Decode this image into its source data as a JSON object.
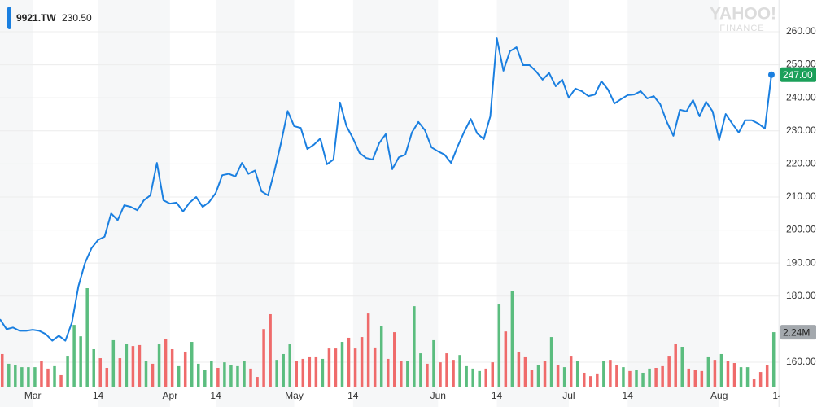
{
  "chart_data": {
    "type": "line",
    "logo": "YAHOO!",
    "logo_sub": "FINANCE",
    "legend_value": "230.50",
    "grid": true,
    "ylim": [
      152.6,
      269.6
    ],
    "yticks": [
      {
        "value": 160,
        "label": "160.00"
      },
      {
        "value": 180,
        "label": "180.00"
      },
      {
        "value": 190,
        "label": "190.00"
      },
      {
        "value": 200,
        "label": "200.00"
      },
      {
        "value": 210,
        "label": "210.00"
      },
      {
        "value": 220,
        "label": "220.00"
      },
      {
        "value": 230,
        "label": "230.00"
      },
      {
        "value": 240,
        "label": "240.00"
      },
      {
        "value": 250,
        "label": "250.00"
      },
      {
        "value": 260,
        "label": "260.00"
      }
    ],
    "y2lim": [
      0,
      15.9
    ],
    "categories": [
      null,
      null,
      null,
      null,
      null,
      "Mar",
      null,
      null,
      null,
      null,
      null,
      null,
      null,
      null,
      null,
      "14",
      null,
      null,
      null,
      null,
      null,
      null,
      null,
      null,
      null,
      null,
      "Apr",
      null,
      null,
      null,
      null,
      null,
      null,
      "14",
      null,
      null,
      null,
      null,
      null,
      null,
      null,
      null,
      null,
      null,
      null,
      "May",
      null,
      null,
      null,
      null,
      null,
      null,
      null,
      null,
      "14",
      null,
      null,
      null,
      null,
      null,
      null,
      null,
      null,
      null,
      null,
      null,
      null,
      "Jun",
      null,
      null,
      null,
      null,
      null,
      null,
      null,
      null,
      "14",
      null,
      null,
      null,
      null,
      null,
      null,
      null,
      null,
      null,
      null,
      "Jul",
      null,
      null,
      null,
      null,
      null,
      null,
      null,
      null,
      "14",
      null,
      null,
      null,
      null,
      null,
      null,
      null,
      null,
      null,
      null,
      null,
      null,
      null,
      "Aug",
      null,
      null,
      null,
      null,
      null,
      null,
      null,
      null,
      "14"
    ],
    "series": [
      {
        "name": "9921.TW",
        "type": "line",
        "color": "#1a7fe0",
        "badge_color": "#1ba05a",
        "values": [
          173,
          170,
          170.5,
          169.5,
          169.5,
          169.8,
          169.5,
          168.5,
          166.5,
          168,
          166.5,
          172,
          183,
          190,
          194.5,
          197,
          198,
          205,
          203,
          207.5,
          207,
          206,
          209,
          210.5,
          220.3,
          209,
          208,
          208.3,
          205.6,
          208.3,
          210,
          207,
          208.5,
          211.2,
          216.6,
          217,
          216.2,
          220.3,
          217,
          218,
          211.7,
          210.5,
          218,
          226.5,
          236,
          231.4,
          230.9,
          224.5,
          225.8,
          227.7,
          219.9,
          221.3,
          238.6,
          231.4,
          227.7,
          223.3,
          221.8,
          221.3,
          226.3,
          229,
          218.4,
          222,
          222.8,
          229.5,
          232.7,
          230.2,
          225,
          223.8,
          222.8,
          220.3,
          225.3,
          229.7,
          233.6,
          229.2,
          227.5,
          234.4,
          258,
          248.2,
          254.1,
          255.3,
          249.9,
          249.9,
          248,
          245.5,
          247.5,
          243.5,
          245.5,
          240,
          242.8,
          242,
          240.5,
          241,
          245,
          242.5,
          238.3,
          239.6,
          240.8,
          241,
          242,
          239.8,
          240.5,
          238,
          232.7,
          228.5,
          236.4,
          235.9,
          239.3,
          234.4,
          238.8,
          235.9,
          227.2,
          235.1,
          232.2,
          229.5,
          233.2,
          233.2,
          232.2,
          230.7,
          247,
          null
        ],
        "value_labels": [
          null,
          null,
          null,
          null,
          null,
          null,
          null,
          null,
          null,
          null,
          null,
          null,
          null,
          null,
          null,
          null,
          null,
          null,
          null,
          null,
          null,
          null,
          null,
          null,
          null,
          null,
          null,
          null,
          null,
          null,
          null,
          null,
          null,
          null,
          null,
          null,
          null,
          null,
          null,
          null,
          null,
          null,
          null,
          null,
          null,
          null,
          null,
          null,
          null,
          null,
          null,
          null,
          null,
          null,
          null,
          null,
          null,
          null,
          null,
          null,
          null,
          null,
          null,
          null,
          null,
          null,
          null,
          null,
          null,
          null,
          null,
          null,
          null,
          null,
          null,
          null,
          null,
          null,
          null,
          null,
          null,
          null,
          null,
          null,
          null,
          null,
          null,
          null,
          null,
          null,
          null,
          null,
          null,
          null,
          null,
          null,
          null,
          null,
          null,
          null,
          null,
          null,
          null,
          null,
          null,
          null,
          null,
          null,
          null,
          null,
          null,
          null,
          null,
          null,
          null,
          null,
          null,
          null,
          "247.00",
          null
        ]
      },
      {
        "type": "bar",
        "axis": "y2",
        "badge_color": "#a3a8ad",
        "values": [
          1.34,
          0.94,
          0.87,
          0.8,
          0.8,
          0.8,
          1.07,
          0.74,
          0.84,
          0.47,
          1.27,
          2.54,
          2.07,
          4.05,
          1.54,
          1.17,
          0.77,
          1.91,
          1.17,
          1.77,
          1.67,
          1.71,
          1.07,
          0.94,
          1.74,
          1.97,
          1.54,
          0.84,
          1.44,
          1.84,
          0.94,
          0.7,
          1.07,
          0.77,
          1.0,
          0.87,
          0.84,
          1.07,
          0.74,
          0.4,
          2.37,
          2.98,
          1.1,
          1.34,
          1.74,
          1.07,
          1.14,
          1.24,
          1.24,
          1.14,
          1.57,
          1.57,
          1.84,
          2.01,
          1.57,
          2.04,
          3.01,
          1.61,
          2.51,
          1.14,
          2.24,
          1.04,
          1.07,
          3.31,
          1.37,
          0.94,
          1.91,
          1.0,
          1.37,
          1.1,
          1.3,
          0.84,
          0.74,
          0.64,
          0.74,
          1.0,
          3.38,
          2.27,
          3.95,
          1.44,
          1.24,
          0.67,
          0.9,
          1.07,
          2.04,
          0.9,
          0.8,
          1.27,
          1.07,
          0.57,
          0.43,
          0.54,
          1.04,
          1.1,
          0.87,
          0.8,
          0.64,
          0.67,
          0.57,
          0.74,
          0.77,
          0.84,
          1.27,
          1.77,
          1.64,
          0.74,
          0.67,
          0.64,
          1.24,
          1.1,
          1.34,
          1.04,
          0.97,
          0.8,
          0.8,
          0.3,
          0.6,
          0.87,
          2.24,
          null
        ],
        "colors": [
          "#ef6b6b",
          "#5bbd7f",
          "#5bbd7f",
          "#5bbd7f",
          "#5bbd7f",
          "#5bbd7f",
          "#ef6b6b",
          "#ef6b6b",
          "#5bbd7f",
          "#ef6b6b",
          "#5bbd7f",
          "#5bbd7f",
          "#5bbd7f",
          "#5bbd7f",
          "#5bbd7f",
          "#ef6b6b",
          "#ef6b6b",
          "#5bbd7f",
          "#ef6b6b",
          "#5bbd7f",
          "#ef6b6b",
          "#ef6b6b",
          "#5bbd7f",
          "#ef6b6b",
          "#5bbd7f",
          "#ef6b6b",
          "#ef6b6b",
          "#5bbd7f",
          "#ef6b6b",
          "#5bbd7f",
          "#5bbd7f",
          "#5bbd7f",
          "#5bbd7f",
          "#ef6b6b",
          "#5bbd7f",
          "#5bbd7f",
          "#5bbd7f",
          "#5bbd7f",
          "#ef6b6b",
          "#ef6b6b",
          "#ef6b6b",
          "#ef6b6b",
          "#5bbd7f",
          "#5bbd7f",
          "#5bbd7f",
          "#ef6b6b",
          "#ef6b6b",
          "#ef6b6b",
          "#ef6b6b",
          "#5bbd7f",
          "#ef6b6b",
          "#ef6b6b",
          "#5bbd7f",
          "#ef6b6b",
          "#ef6b6b",
          "#ef6b6b",
          "#ef6b6b",
          "#ef6b6b",
          "#5bbd7f",
          "#ef6b6b",
          "#ef6b6b",
          "#ef6b6b",
          "#5bbd7f",
          "#5bbd7f",
          "#5bbd7f",
          "#ef6b6b",
          "#5bbd7f",
          "#ef6b6b",
          "#ef6b6b",
          "#ef6b6b",
          "#5bbd7f",
          "#5bbd7f",
          "#5bbd7f",
          "#5bbd7f",
          "#ef6b6b",
          "#ef6b6b",
          "#5bbd7f",
          "#ef6b6b",
          "#5bbd7f",
          "#ef6b6b",
          "#ef6b6b",
          "#ef6b6b",
          "#5bbd7f",
          "#ef6b6b",
          "#5bbd7f",
          "#ef6b6b",
          "#5bbd7f",
          "#ef6b6b",
          "#5bbd7f",
          "#ef6b6b",
          "#ef6b6b",
          "#ef6b6b",
          "#5bbd7f",
          "#ef6b6b",
          "#ef6b6b",
          "#5bbd7f",
          "#ef6b6b",
          "#5bbd7f",
          "#5bbd7f",
          "#5bbd7f",
          "#ef6b6b",
          "#ef6b6b",
          "#ef6b6b",
          "#ef6b6b",
          "#5bbd7f",
          "#ef6b6b",
          "#ef6b6b",
          "#ef6b6b",
          "#5bbd7f",
          "#ef6b6b",
          "#5bbd7f",
          "#ef6b6b",
          "#ef6b6b",
          "#5bbd7f",
          "#5bbd7f",
          "#ef6b6b",
          "#ef6b6b",
          "#ef6b6b",
          "#5bbd7f",
          null
        ],
        "value_labels": [
          null,
          null,
          null,
          null,
          null,
          null,
          null,
          null,
          null,
          null,
          null,
          null,
          null,
          null,
          null,
          null,
          null,
          null,
          null,
          null,
          null,
          null,
          null,
          null,
          null,
          null,
          null,
          null,
          null,
          null,
          null,
          null,
          null,
          null,
          null,
          null,
          null,
          null,
          null,
          null,
          null,
          null,
          null,
          null,
          null,
          null,
          null,
          null,
          null,
          null,
          null,
          null,
          null,
          null,
          null,
          null,
          null,
          null,
          null,
          null,
          null,
          null,
          null,
          null,
          null,
          null,
          null,
          null,
          null,
          null,
          null,
          null,
          null,
          null,
          null,
          null,
          null,
          null,
          null,
          null,
          null,
          null,
          null,
          null,
          null,
          null,
          null,
          null,
          null,
          null,
          null,
          null,
          null,
          null,
          null,
          null,
          null,
          null,
          null,
          null,
          null,
          null,
          null,
          null,
          null,
          null,
          null,
          null,
          null,
          null,
          null,
          null,
          null,
          null,
          null,
          null,
          null,
          null,
          "2.24M",
          null
        ]
      }
    ]
  }
}
